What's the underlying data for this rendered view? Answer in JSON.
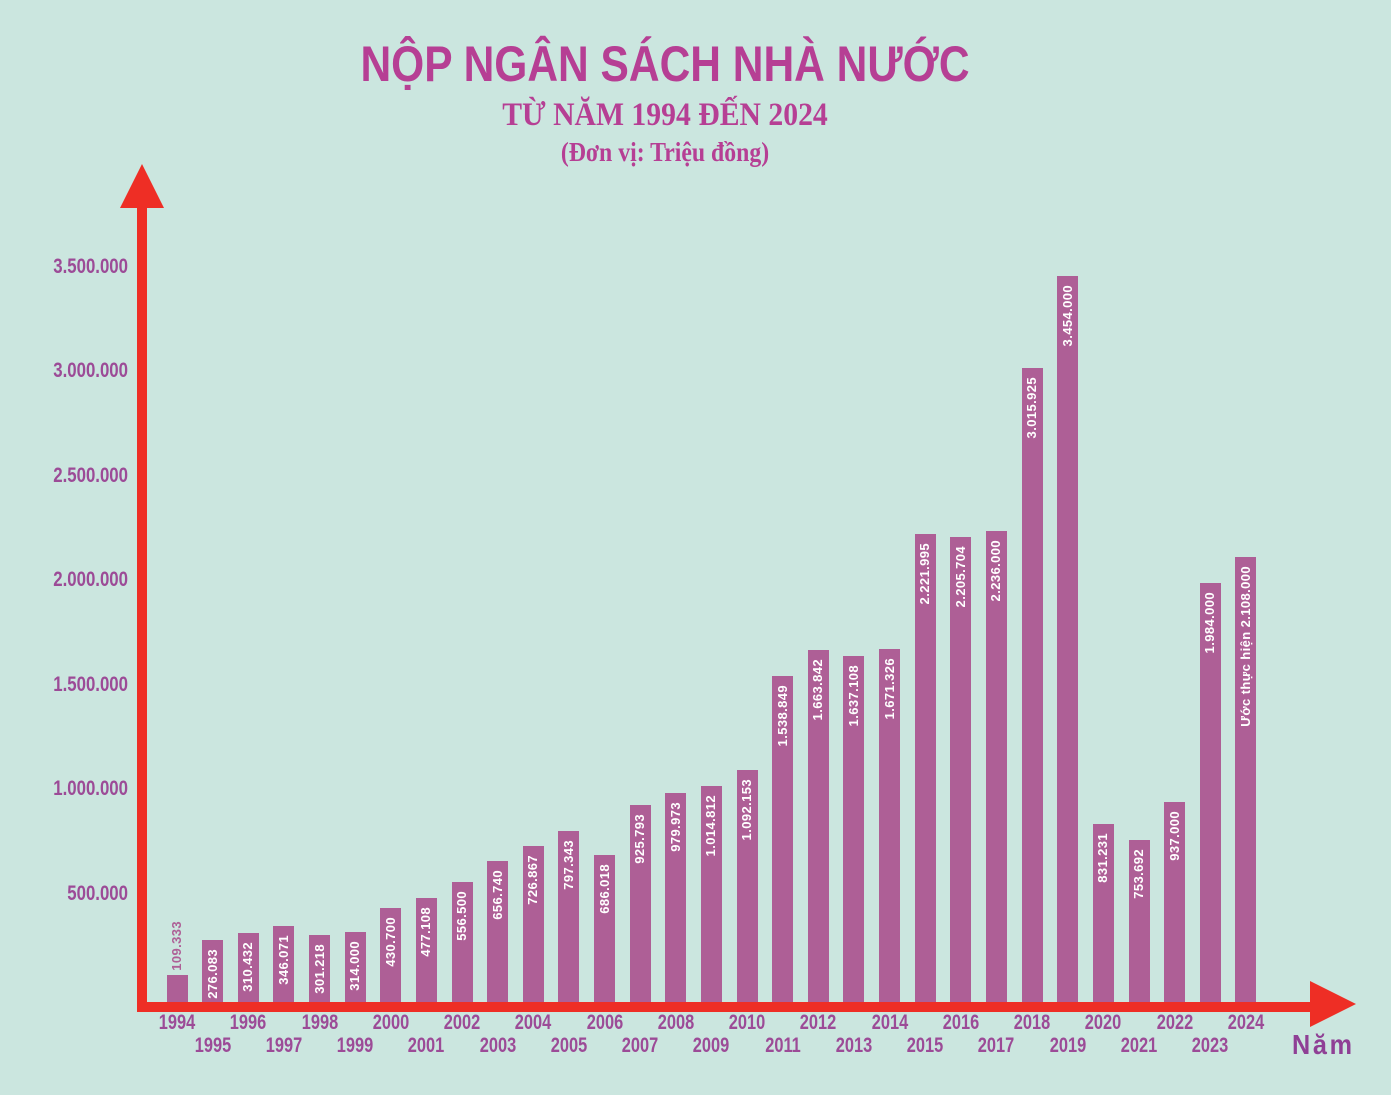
{
  "colors": {
    "background": "#cbe6df",
    "bar": "#ae5f96",
    "title_text": "#b63f94",
    "axis": "#ee2e25",
    "tick_label": "#9c4b97",
    "bar_label_inside": "#ffffff",
    "xaxis_title": "#8f4095"
  },
  "chart_data": {
    "type": "bar",
    "title": "NỘP NGÂN SÁCH NHÀ NƯỚC",
    "subtitle": "TỪ NĂM 1994 ĐẾN 2024",
    "unit_note": "(Đơn vị: Triệu đồng)",
    "xlabel": "Năm",
    "ylabel": "",
    "ylim": [
      0,
      3700000
    ],
    "grid": false,
    "legend": "none",
    "y_ticks": [
      500000,
      1000000,
      1500000,
      2000000,
      2500000,
      3000000,
      3500000
    ],
    "y_tick_labels": [
      "500.000",
      "1.000.000",
      "1.500.000",
      "2.000.000",
      "2.500.000",
      "3.000.000",
      "3.500.000"
    ],
    "categories": [
      "1994",
      "1995",
      "1996",
      "1997",
      "1998",
      "1999",
      "2000",
      "2001",
      "2002",
      "2003",
      "2004",
      "2005",
      "2006",
      "2007",
      "2008",
      "2009",
      "2010",
      "2011",
      "2012",
      "2013",
      "2014",
      "2015",
      "2016",
      "2017",
      "2018",
      "2019",
      "2020",
      "2021",
      "2022",
      "2023",
      "2024"
    ],
    "values": [
      109333,
      276083,
      310432,
      346071,
      301218,
      314000,
      430700,
      477108,
      556500,
      656740,
      726867,
      797343,
      686018,
      925793,
      979973,
      1014812,
      1092153,
      1538849,
      1663842,
      1637108,
      1671326,
      2221995,
      2205704,
      2236000,
      3015925,
      3454000,
      831231,
      753692,
      937000,
      1984000,
      2108000
    ],
    "bar_labels": [
      "109.333",
      "276.083",
      "310.432",
      "346.071",
      "301.218",
      "314.000",
      "430.700",
      "477.108",
      "556.500",
      "656.740",
      "726.867",
      "797.343",
      "686.018",
      "925.793",
      "979.973",
      "1.014.812",
      "1.092.153",
      "1.538.849",
      "1.663.842",
      "1.637.108",
      "1.671.326",
      "2.221.995",
      "2.205.704",
      "2.236.000",
      "3.015.925",
      "3.454.000",
      "831.231",
      "753.692",
      "937.000",
      "1.984.000",
      "Ước thực hiện 2.108.000"
    ]
  }
}
